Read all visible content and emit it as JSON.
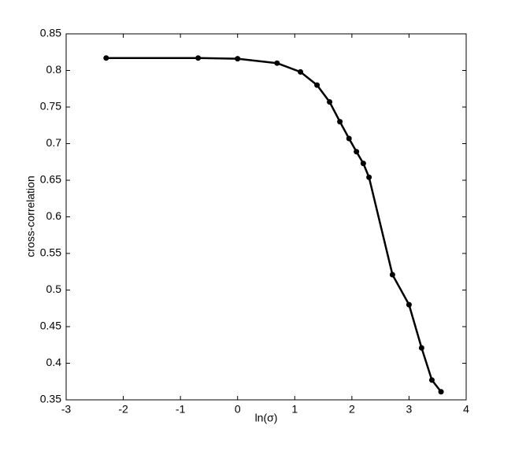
{
  "chart_data": {
    "type": "line",
    "x_label": "ln(σ)",
    "y_label": "cross-correlation",
    "x": [
      -2.3,
      -0.69,
      0,
      0.69,
      1.1,
      1.39,
      1.61,
      1.79,
      1.95,
      2.08,
      2.2,
      2.3,
      2.71,
      3.0,
      3.22,
      3.4,
      3.56
    ],
    "series": [
      {
        "color": "#000000",
        "values": [
          0.817,
          0.817,
          0.816,
          0.81,
          0.798,
          0.78,
          0.757,
          0.73,
          0.707,
          0.689,
          0.673,
          0.654,
          0.521,
          0.48,
          0.421,
          0.377,
          0.361
        ]
      }
    ],
    "xlim": [
      -3,
      4
    ],
    "xticks": [
      -3,
      -2,
      -1,
      0,
      1,
      2,
      3,
      4
    ],
    "ylim": [
      0.35,
      0.85
    ],
    "yticks": [
      0.35,
      0.4,
      0.45,
      0.5,
      0.55,
      0.6,
      0.65,
      0.7,
      0.75,
      0.8,
      0.85
    ],
    "grid": false
  }
}
